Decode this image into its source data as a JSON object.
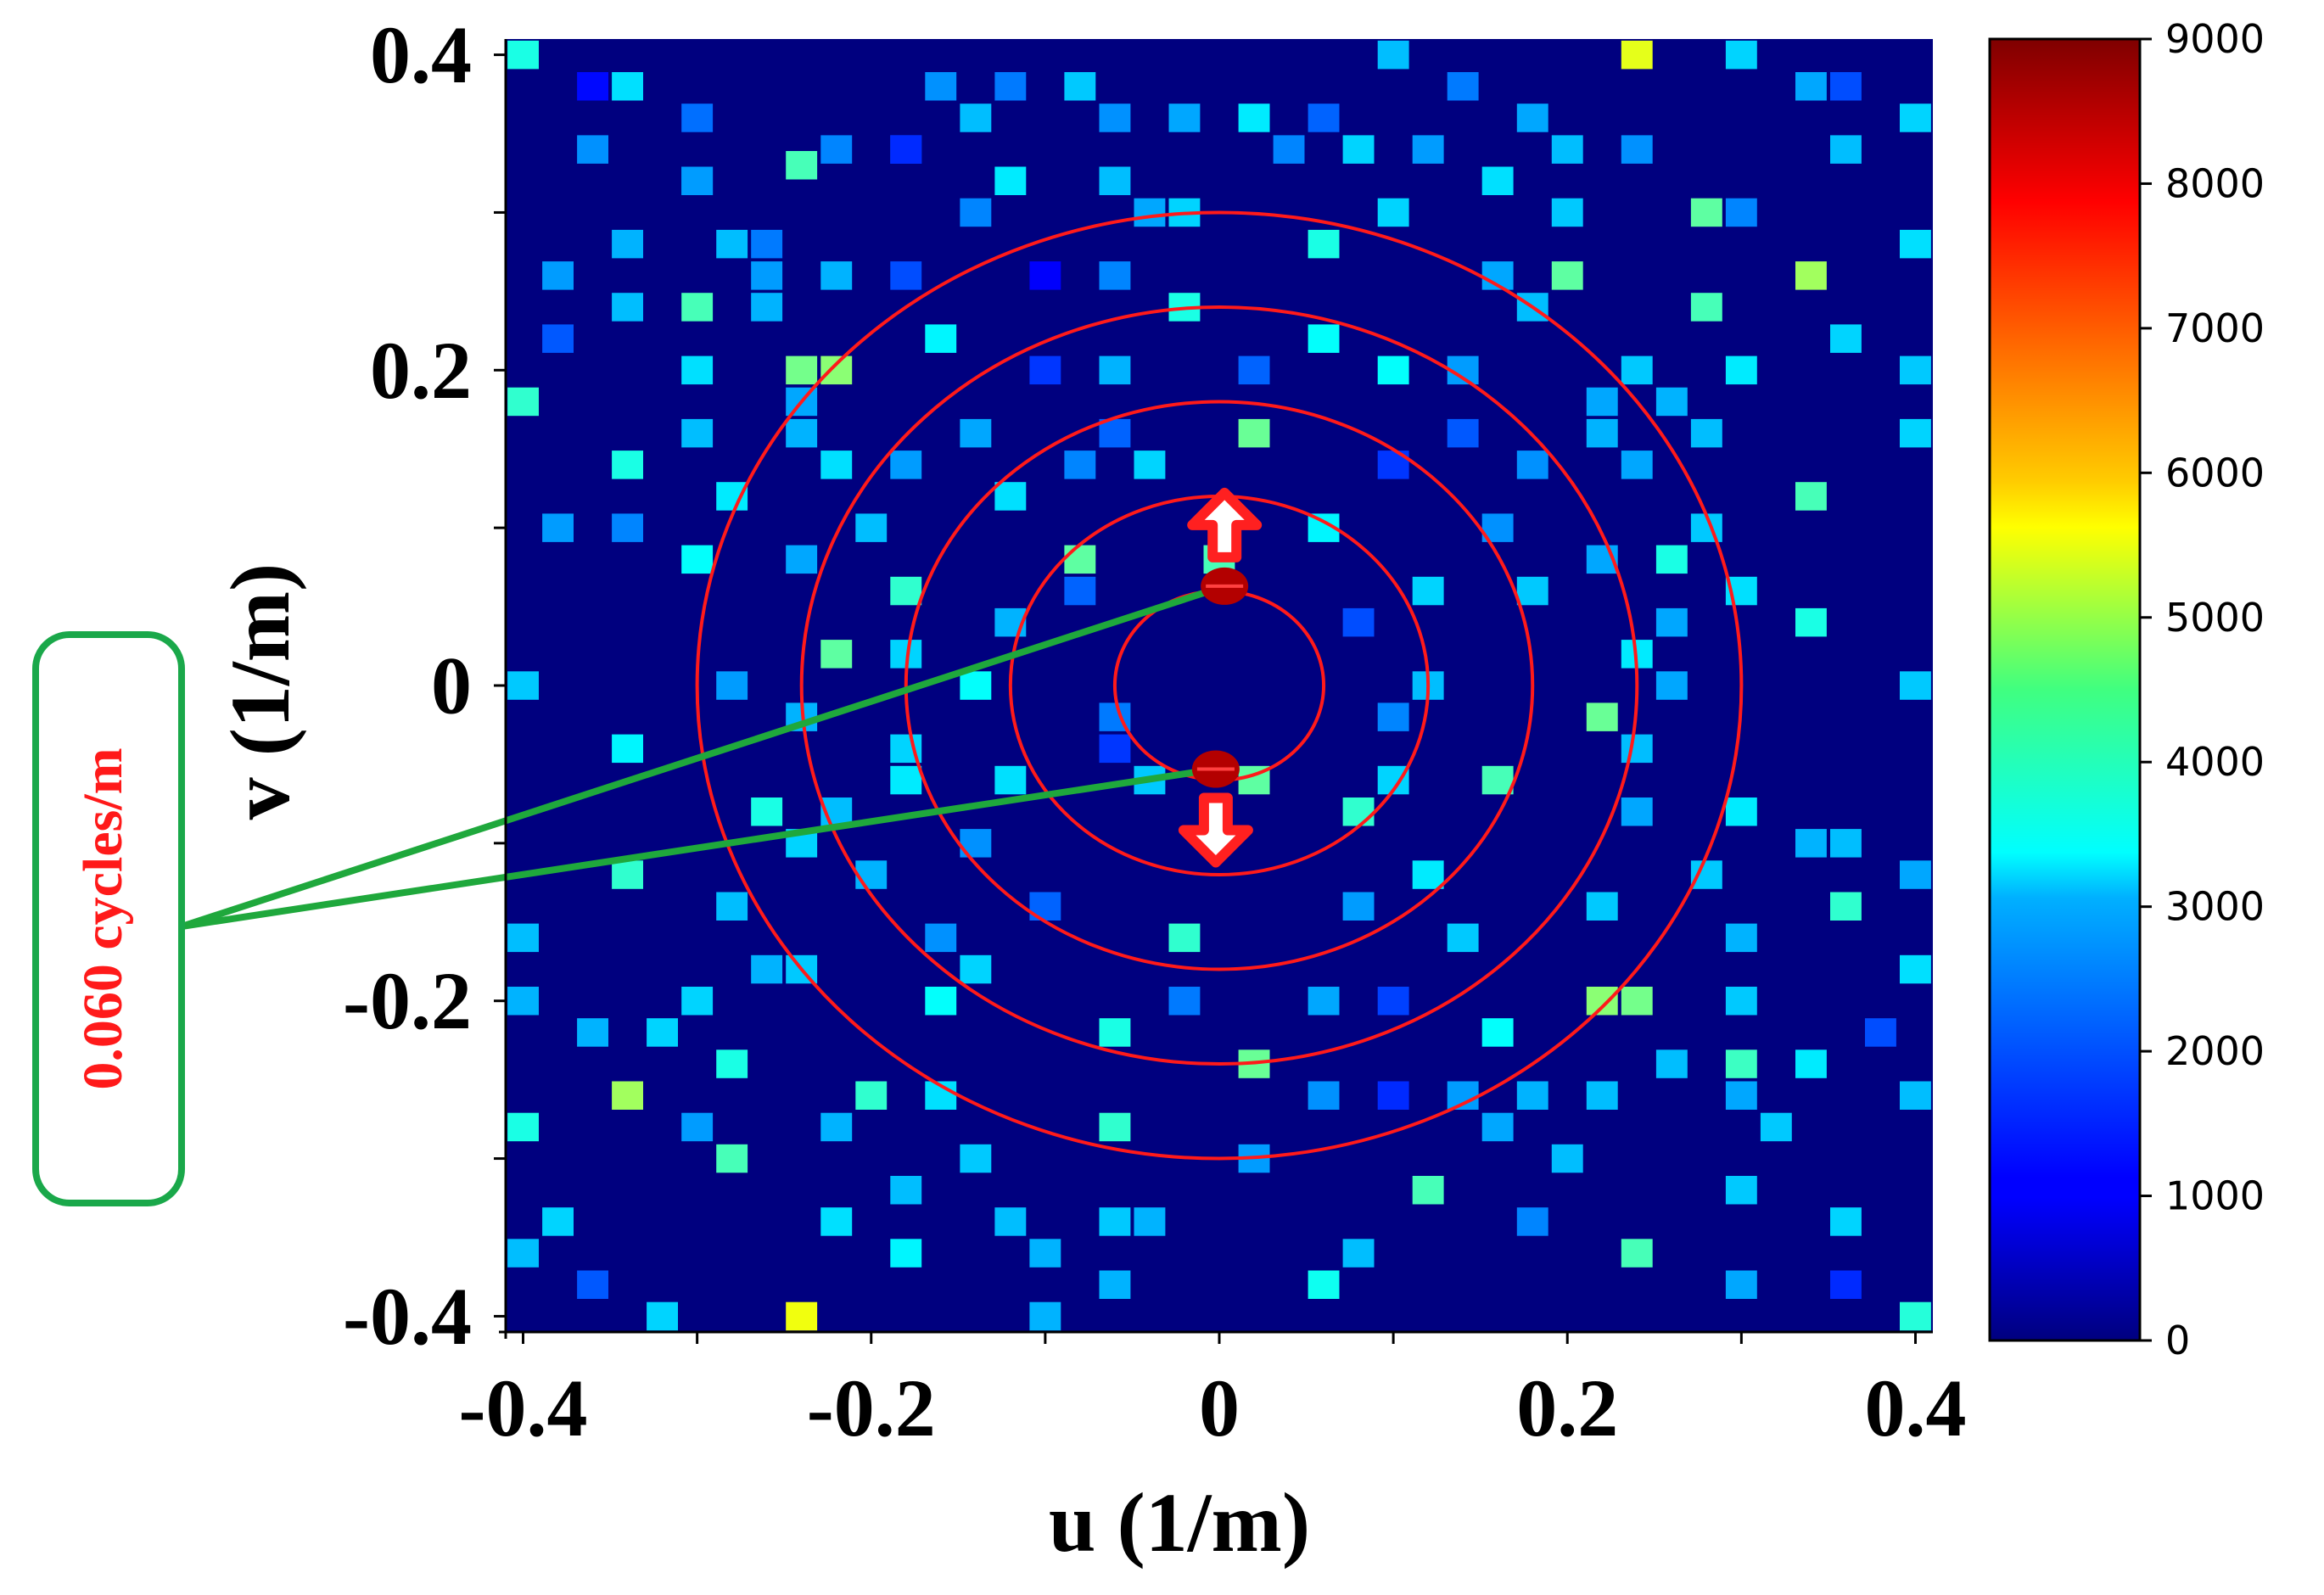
{
  "chart_data": {
    "type": "heatmap",
    "title": "",
    "xlabel": "u (1/m)",
    "ylabel": "v (1/m)",
    "xlim": [
      -0.41,
      0.41
    ],
    "ylim": [
      -0.41,
      0.41
    ],
    "x_ticks": [
      -0.4,
      -0.2,
      0,
      0.2,
      0.4
    ],
    "x_tick_labels": [
      "-0.4",
      "-0.2",
      "0",
      "0.2",
      "0.4"
    ],
    "y_ticks": [
      0.4,
      0.2,
      0,
      -0.2,
      -0.4
    ],
    "y_tick_labels": [
      "0.4",
      "0.2",
      "0",
      "-0.2",
      "-0.4"
    ],
    "background_value": 0,
    "cell_size": 0.018,
    "colorbar": {
      "min": 0,
      "max": 9000,
      "ticks": [
        0,
        1000,
        2000,
        3000,
        4000,
        5000,
        6000,
        7000,
        8000,
        9000
      ],
      "colormap": "jet"
    },
    "cells": [
      [
        -0.4,
        0.4,
        3600
      ],
      [
        -0.36,
        0.38,
        1200
      ],
      [
        -0.34,
        0.38,
        3100
      ],
      [
        -0.3,
        0.36,
        2100
      ],
      [
        -0.24,
        0.33,
        4000
      ],
      [
        -0.18,
        0.34,
        2000
      ],
      [
        -0.16,
        0.38,
        2400
      ],
      [
        -0.14,
        0.36,
        2800
      ],
      [
        -0.12,
        0.38,
        2200
      ],
      [
        -0.08,
        0.38,
        2900
      ],
      [
        -0.06,
        0.36,
        2400
      ],
      [
        -0.02,
        0.36,
        2600
      ],
      [
        0.02,
        0.36,
        3200
      ],
      [
        0.06,
        0.36,
        2000
      ],
      [
        0.1,
        0.4,
        2800
      ],
      [
        0.14,
        0.38,
        2200
      ],
      [
        0.18,
        0.36,
        2600
      ],
      [
        0.24,
        0.4,
        5400
      ],
      [
        0.3,
        0.4,
        3000
      ],
      [
        0.34,
        0.38,
        2600
      ],
      [
        0.36,
        0.38,
        1800
      ],
      [
        0.4,
        0.36,
        3000
      ],
      [
        -0.36,
        0.34,
        2400
      ],
      [
        -0.3,
        0.32,
        2800
      ],
      [
        -0.22,
        0.34,
        2300
      ],
      [
        -0.18,
        0.34,
        1500
      ],
      [
        -0.12,
        0.32,
        3200
      ],
      [
        -0.06,
        0.32,
        2800
      ],
      [
        -0.02,
        0.3,
        3000
      ],
      [
        0.04,
        0.34,
        2300
      ],
      [
        0.08,
        0.34,
        3000
      ],
      [
        0.12,
        0.34,
        2500
      ],
      [
        0.16,
        0.32,
        3100
      ],
      [
        0.2,
        0.34,
        2800
      ],
      [
        0.24,
        0.34,
        2400
      ],
      [
        0.28,
        0.3,
        4200
      ],
      [
        0.36,
        0.34,
        2800
      ],
      [
        -0.34,
        0.28,
        2700
      ],
      [
        -0.28,
        0.28,
        2800
      ],
      [
        -0.26,
        0.28,
        2200
      ],
      [
        -0.3,
        0.32,
        2500
      ],
      [
        -0.14,
        0.3,
        2300
      ],
      [
        -0.04,
        0.3,
        2600
      ],
      [
        0.06,
        0.28,
        3600
      ],
      [
        0.1,
        0.3,
        3000
      ],
      [
        0.2,
        0.3,
        2900
      ],
      [
        0.3,
        0.3,
        2300
      ],
      [
        0.4,
        0.28,
        3100
      ],
      [
        -0.38,
        0.26,
        2500
      ],
      [
        -0.26,
        0.26,
        2500
      ],
      [
        -0.22,
        0.26,
        2700
      ],
      [
        -0.18,
        0.26,
        1800
      ],
      [
        -0.1,
        0.26,
        1100
      ],
      [
        -0.06,
        0.26,
        2300
      ],
      [
        0.16,
        0.26,
        2600
      ],
      [
        0.2,
        0.26,
        4200
      ],
      [
        0.34,
        0.26,
        4800
      ],
      [
        -0.34,
        0.24,
        2800
      ],
      [
        -0.3,
        0.24,
        4000
      ],
      [
        -0.26,
        0.24,
        2700
      ],
      [
        -0.38,
        0.22,
        1900
      ],
      [
        -0.16,
        0.22,
        3300
      ],
      [
        -0.02,
        0.24,
        3600
      ],
      [
        0.06,
        0.22,
        3400
      ],
      [
        0.18,
        0.24,
        2800
      ],
      [
        0.28,
        0.24,
        4000
      ],
      [
        0.36,
        0.22,
        3000
      ],
      [
        -0.3,
        0.2,
        3100
      ],
      [
        -0.24,
        0.2,
        4400
      ],
      [
        -0.22,
        0.2,
        4600
      ],
      [
        -0.1,
        0.2,
        1600
      ],
      [
        -0.06,
        0.2,
        2700
      ],
      [
        0.02,
        0.2,
        2000
      ],
      [
        0.1,
        0.2,
        3400
      ],
      [
        0.14,
        0.2,
        2500
      ],
      [
        0.24,
        0.2,
        2900
      ],
      [
        0.3,
        0.2,
        3200
      ],
      [
        0.4,
        0.2,
        2900
      ],
      [
        -0.4,
        0.18,
        3800
      ],
      [
        -0.24,
        0.18,
        2600
      ],
      [
        0.22,
        0.18,
        2600
      ],
      [
        0.26,
        0.18,
        2700
      ],
      [
        -0.3,
        0.16,
        2800
      ],
      [
        -0.24,
        0.16,
        2700
      ],
      [
        -0.14,
        0.16,
        2600
      ],
      [
        -0.06,
        0.16,
        2000
      ],
      [
        0.02,
        0.16,
        4300
      ],
      [
        0.14,
        0.16,
        1900
      ],
      [
        0.22,
        0.16,
        2700
      ],
      [
        0.28,
        0.16,
        2800
      ],
      [
        0.4,
        0.16,
        3000
      ],
      [
        -0.34,
        0.14,
        3600
      ],
      [
        -0.22,
        0.14,
        3100
      ],
      [
        -0.18,
        0.14,
        2500
      ],
      [
        -0.08,
        0.14,
        2300
      ],
      [
        -0.04,
        0.14,
        3000
      ],
      [
        0.1,
        0.14,
        1600
      ],
      [
        0.18,
        0.14,
        2400
      ],
      [
        0.24,
        0.14,
        2600
      ],
      [
        -0.28,
        0.12,
        3200
      ],
      [
        -0.12,
        0.12,
        3100
      ],
      [
        0.34,
        0.12,
        4000
      ],
      [
        -0.38,
        0.1,
        2500
      ],
      [
        -0.34,
        0.1,
        2300
      ],
      [
        -0.2,
        0.1,
        2800
      ],
      [
        0.06,
        0.1,
        3300
      ],
      [
        0.16,
        0.1,
        2400
      ],
      [
        0.28,
        0.1,
        2900
      ],
      [
        -0.3,
        0.08,
        3400
      ],
      [
        -0.24,
        0.08,
        2600
      ],
      [
        -0.08,
        0.08,
        4200
      ],
      [
        0.0,
        0.08,
        4000
      ],
      [
        0.22,
        0.08,
        2600
      ],
      [
        0.26,
        0.08,
        3600
      ],
      [
        -0.18,
        0.06,
        3800
      ],
      [
        -0.08,
        0.06,
        2000
      ],
      [
        0.12,
        0.06,
        3000
      ],
      [
        0.18,
        0.06,
        2900
      ],
      [
        0.3,
        0.06,
        3100
      ],
      [
        -0.12,
        0.04,
        2700
      ],
      [
        0.08,
        0.04,
        1800
      ],
      [
        0.26,
        0.04,
        2600
      ],
      [
        0.34,
        0.04,
        3600
      ],
      [
        -0.22,
        0.02,
        4200
      ],
      [
        -0.18,
        0.02,
        3000
      ],
      [
        0.24,
        0.02,
        3200
      ],
      [
        -0.4,
        0.0,
        2900
      ],
      [
        -0.28,
        0.0,
        2500
      ],
      [
        -0.14,
        0.0,
        3400
      ],
      [
        0.12,
        0.0,
        2800
      ],
      [
        0.26,
        0.0,
        2600
      ],
      [
        0.4,
        0.0,
        2900
      ],
      [
        -0.24,
        -0.02,
        2700
      ],
      [
        -0.06,
        -0.02,
        2200
      ],
      [
        0.1,
        -0.02,
        2300
      ],
      [
        0.22,
        -0.02,
        4300
      ],
      [
        -0.34,
        -0.04,
        3300
      ],
      [
        -0.18,
        -0.04,
        3000
      ],
      [
        -0.06,
        -0.04,
        1600
      ],
      [
        0.24,
        -0.04,
        2800
      ],
      [
        -0.18,
        -0.06,
        3200
      ],
      [
        -0.12,
        -0.06,
        3100
      ],
      [
        -0.04,
        -0.06,
        2900
      ],
      [
        0.02,
        -0.06,
        4200
      ],
      [
        0.1,
        -0.06,
        3000
      ],
      [
        0.16,
        -0.06,
        4000
      ],
      [
        -0.26,
        -0.08,
        3600
      ],
      [
        -0.22,
        -0.08,
        2800
      ],
      [
        0.08,
        -0.08,
        3800
      ],
      [
        0.24,
        -0.08,
        2600
      ],
      [
        0.3,
        -0.08,
        3200
      ],
      [
        -0.24,
        -0.1,
        3000
      ],
      [
        -0.14,
        -0.1,
        2400
      ],
      [
        0.34,
        -0.1,
        2700
      ],
      [
        0.36,
        -0.1,
        2800
      ],
      [
        -0.34,
        -0.12,
        3800
      ],
      [
        -0.2,
        -0.12,
        2700
      ],
      [
        0.12,
        -0.12,
        3200
      ],
      [
        0.28,
        -0.12,
        2900
      ],
      [
        0.4,
        -0.12,
        2600
      ],
      [
        -0.28,
        -0.14,
        2800
      ],
      [
        -0.1,
        -0.14,
        2000
      ],
      [
        0.08,
        -0.14,
        2500
      ],
      [
        0.22,
        -0.14,
        2900
      ],
      [
        0.36,
        -0.14,
        3800
      ],
      [
        -0.4,
        -0.16,
        2800
      ],
      [
        -0.16,
        -0.16,
        2400
      ],
      [
        -0.02,
        -0.16,
        3800
      ],
      [
        0.14,
        -0.16,
        2900
      ],
      [
        0.3,
        -0.16,
        2700
      ],
      [
        -0.26,
        -0.18,
        2700
      ],
      [
        -0.24,
        -0.18,
        2900
      ],
      [
        -0.14,
        -0.18,
        3000
      ],
      [
        0.4,
        -0.18,
        3100
      ],
      [
        -0.4,
        -0.2,
        2700
      ],
      [
        -0.3,
        -0.2,
        3000
      ],
      [
        -0.16,
        -0.2,
        3400
      ],
      [
        -0.02,
        -0.2,
        2200
      ],
      [
        0.06,
        -0.2,
        2600
      ],
      [
        0.1,
        -0.2,
        1700
      ],
      [
        0.22,
        -0.2,
        4600
      ],
      [
        0.24,
        -0.2,
        4400
      ],
      [
        0.3,
        -0.2,
        2900
      ],
      [
        -0.36,
        -0.22,
        2700
      ],
      [
        -0.32,
        -0.22,
        3000
      ],
      [
        -0.06,
        -0.22,
        3600
      ],
      [
        0.16,
        -0.22,
        3400
      ],
      [
        0.38,
        -0.22,
        1800
      ],
      [
        -0.28,
        -0.24,
        3600
      ],
      [
        0.02,
        -0.24,
        4300
      ],
      [
        0.26,
        -0.24,
        2800
      ],
      [
        0.3,
        -0.24,
        3900
      ],
      [
        0.34,
        -0.24,
        3200
      ],
      [
        -0.34,
        -0.26,
        4800
      ],
      [
        -0.2,
        -0.26,
        3800
      ],
      [
        -0.16,
        -0.26,
        3100
      ],
      [
        0.06,
        -0.26,
        2400
      ],
      [
        0.1,
        -0.26,
        1500
      ],
      [
        0.14,
        -0.26,
        2500
      ],
      [
        0.18,
        -0.26,
        2700
      ],
      [
        0.22,
        -0.26,
        2800
      ],
      [
        0.3,
        -0.26,
        2600
      ],
      [
        0.4,
        -0.26,
        2800
      ],
      [
        -0.4,
        -0.28,
        3600
      ],
      [
        -0.3,
        -0.28,
        2500
      ],
      [
        -0.22,
        -0.28,
        2700
      ],
      [
        -0.06,
        -0.28,
        3800
      ],
      [
        0.16,
        -0.28,
        2600
      ],
      [
        0.32,
        -0.28,
        2900
      ],
      [
        -0.28,
        -0.3,
        4000
      ],
      [
        -0.14,
        -0.3,
        2900
      ],
      [
        0.02,
        -0.3,
        2500
      ],
      [
        0.2,
        -0.3,
        2800
      ],
      [
        -0.18,
        -0.32,
        2800
      ],
      [
        0.12,
        -0.32,
        4000
      ],
      [
        0.3,
        -0.32,
        2900
      ],
      [
        -0.38,
        -0.34,
        3000
      ],
      [
        -0.22,
        -0.34,
        3100
      ],
      [
        -0.12,
        -0.34,
        2800
      ],
      [
        -0.06,
        -0.34,
        2900
      ],
      [
        -0.04,
        -0.34,
        2700
      ],
      [
        0.18,
        -0.34,
        2300
      ],
      [
        0.36,
        -0.34,
        3000
      ],
      [
        -0.4,
        -0.36,
        2800
      ],
      [
        -0.18,
        -0.36,
        3300
      ],
      [
        -0.1,
        -0.36,
        2700
      ],
      [
        0.08,
        -0.36,
        2800
      ],
      [
        0.24,
        -0.36,
        4000
      ],
      [
        -0.36,
        -0.38,
        1900
      ],
      [
        -0.06,
        -0.38,
        2700
      ],
      [
        0.06,
        -0.38,
        3500
      ],
      [
        0.3,
        -0.38,
        2600
      ],
      [
        0.36,
        -0.38,
        1500
      ],
      [
        -0.32,
        -0.4,
        3000
      ],
      [
        -0.24,
        -0.4,
        5500
      ],
      [
        -0.1,
        -0.4,
        2700
      ],
      [
        0.4,
        -0.4,
        3700
      ]
    ],
    "circles": [
      {
        "cx": 0,
        "cy": 0,
        "r": 0.06
      },
      {
        "cx": 0,
        "cy": 0,
        "r": 0.12
      },
      {
        "cx": 0,
        "cy": 0,
        "r": 0.18
      },
      {
        "cx": 0,
        "cy": 0,
        "r": 0.24
      },
      {
        "cx": 0,
        "cy": 0,
        "r": 0.3
      }
    ],
    "markers": [
      {
        "x": 0.003,
        "y": 0.063,
        "direction": "up"
      },
      {
        "x": -0.002,
        "y": -0.053,
        "direction": "down"
      }
    ],
    "annotation": {
      "text": "0.060 cycles/m",
      "text_color": "#ff1a1a",
      "box_color": "#1aa84a",
      "line_color": "#1fa83c"
    },
    "colors": {
      "background": "#00007f",
      "circle": "#ff1a1a",
      "marker": "#b30000",
      "arrow": "#ff2020"
    }
  }
}
